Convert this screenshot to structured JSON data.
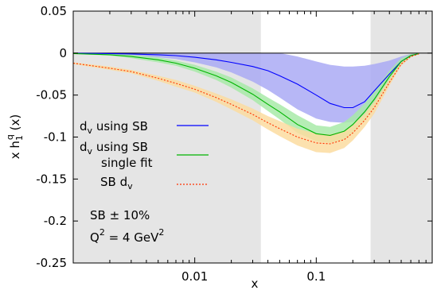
{
  "chart_data": {
    "type": "line",
    "title": "",
    "xlabel": "x",
    "ylabel_parts": {
      "base": "x h",
      "sub": "1",
      "sup": "q",
      "tail": " (x)"
    },
    "xscale": "log",
    "xlim": [
      0.001,
      0.9
    ],
    "ylim": [
      -0.25,
      0.05
    ],
    "yticks": [
      0.05,
      0,
      -0.05,
      -0.1,
      -0.15,
      -0.2,
      -0.25
    ],
    "ytick_labels": [
      "0.05",
      "0",
      "-0.05",
      "-0.1",
      "-0.15",
      "-0.2",
      "-0.25"
    ],
    "xticks": [
      0.01,
      0.1
    ],
    "xtick_labels": [
      "0.01",
      "0.1"
    ],
    "shaded_regions": [
      {
        "x_from": 0.001,
        "x_to": 0.035,
        "color": "#e5e5e5"
      },
      {
        "x_from": 0.28,
        "x_to": 0.9,
        "color": "#e5e5e5"
      }
    ],
    "zero_line": true,
    "grid": false,
    "legend_position": "left-center",
    "series": [
      {
        "label_main": "d",
        "label_sub": "v",
        "label_rest": " using SB",
        "style": "solid",
        "color": "#0000ff",
        "band_color": "#aaaaf4",
        "x": [
          0.001,
          0.002,
          0.003,
          0.005,
          0.007,
          0.01,
          0.015,
          0.02,
          0.03,
          0.04,
          0.05,
          0.07,
          0.1,
          0.13,
          0.17,
          0.2,
          0.25,
          0.3,
          0.4,
          0.5,
          0.6,
          0.7
        ],
        "y": [
          -0.0002,
          -0.0005,
          -0.001,
          -0.002,
          -0.003,
          -0.005,
          -0.008,
          -0.011,
          -0.016,
          -0.021,
          -0.027,
          -0.037,
          -0.05,
          -0.06,
          -0.065,
          -0.065,
          -0.058,
          -0.045,
          -0.025,
          -0.01,
          -0.003,
          -0.0005
        ],
        "upper": [
          0,
          0,
          0,
          0,
          0,
          0,
          0,
          0,
          0,
          0,
          0,
          -0.004,
          -0.01,
          -0.014,
          -0.016,
          -0.016,
          -0.015,
          -0.013,
          -0.009,
          -0.004,
          -0.001,
          0
        ],
        "lower": [
          -0.001,
          -0.002,
          -0.003,
          -0.005,
          -0.007,
          -0.011,
          -0.017,
          -0.023,
          -0.034,
          -0.044,
          -0.053,
          -0.067,
          -0.078,
          -0.082,
          -0.083,
          -0.082,
          -0.075,
          -0.062,
          -0.036,
          -0.015,
          -0.005,
          -0.001
        ]
      },
      {
        "label_main": "d",
        "label_sub": "v",
        "label_rest": " using SB",
        "label_line2": "single fit",
        "style": "solid",
        "color": "#00b400",
        "band_color": "#a8eaa8",
        "x": [
          0.001,
          0.002,
          0.003,
          0.005,
          0.007,
          0.01,
          0.015,
          0.02,
          0.03,
          0.04,
          0.05,
          0.07,
          0.1,
          0.13,
          0.17,
          0.2,
          0.25,
          0.3,
          0.4,
          0.5,
          0.6,
          0.7
        ],
        "y": [
          -0.0005,
          -0.002,
          -0.004,
          -0.008,
          -0.012,
          -0.018,
          -0.027,
          -0.035,
          -0.049,
          -0.061,
          -0.07,
          -0.085,
          -0.096,
          -0.098,
          -0.093,
          -0.085,
          -0.07,
          -0.055,
          -0.028,
          -0.01,
          -0.003,
          -0.0005
        ],
        "upper": [
          0,
          -0.001,
          -0.002,
          -0.005,
          -0.009,
          -0.014,
          -0.022,
          -0.029,
          -0.042,
          -0.053,
          -0.061,
          -0.074,
          -0.086,
          -0.088,
          -0.082,
          -0.074,
          -0.06,
          -0.046,
          -0.021,
          -0.006,
          -0.001,
          0
        ],
        "lower": [
          -0.001,
          -0.003,
          -0.006,
          -0.011,
          -0.015,
          -0.022,
          -0.032,
          -0.041,
          -0.056,
          -0.069,
          -0.079,
          -0.095,
          -0.105,
          -0.107,
          -0.103,
          -0.095,
          -0.08,
          -0.064,
          -0.035,
          -0.014,
          -0.005,
          -0.001
        ]
      },
      {
        "label_main": "SB d",
        "label_sub": "v",
        "label_rest": "",
        "style": "dotted",
        "color": "#ff3300",
        "band_color": "#fbdca0",
        "x": [
          0.001,
          0.002,
          0.003,
          0.005,
          0.007,
          0.01,
          0.015,
          0.02,
          0.03,
          0.04,
          0.05,
          0.07,
          0.1,
          0.13,
          0.17,
          0.2,
          0.25,
          0.3,
          0.4,
          0.5,
          0.6,
          0.7
        ],
        "y": [
          -0.012,
          -0.018,
          -0.022,
          -0.03,
          -0.036,
          -0.043,
          -0.053,
          -0.061,
          -0.073,
          -0.083,
          -0.09,
          -0.1,
          -0.107,
          -0.108,
          -0.103,
          -0.095,
          -0.08,
          -0.065,
          -0.035,
          -0.013,
          -0.004,
          -0.001
        ],
        "upper": [
          -0.011,
          -0.016,
          -0.02,
          -0.027,
          -0.032,
          -0.039,
          -0.048,
          -0.055,
          -0.066,
          -0.075,
          -0.081,
          -0.09,
          -0.096,
          -0.097,
          -0.093,
          -0.086,
          -0.072,
          -0.058,
          -0.031,
          -0.011,
          -0.003,
          -0.0005
        ],
        "lower": [
          -0.013,
          -0.02,
          -0.024,
          -0.033,
          -0.04,
          -0.047,
          -0.058,
          -0.067,
          -0.08,
          -0.091,
          -0.099,
          -0.11,
          -0.118,
          -0.119,
          -0.113,
          -0.104,
          -0.088,
          -0.072,
          -0.039,
          -0.015,
          -0.005,
          -0.0015
        ]
      }
    ],
    "annotations": {
      "band_note": "SB ± 10%",
      "scale_base": "Q",
      "scale_sup": "2",
      "scale_eq": " = 4 GeV",
      "scale_unit_sup": "2"
    }
  }
}
